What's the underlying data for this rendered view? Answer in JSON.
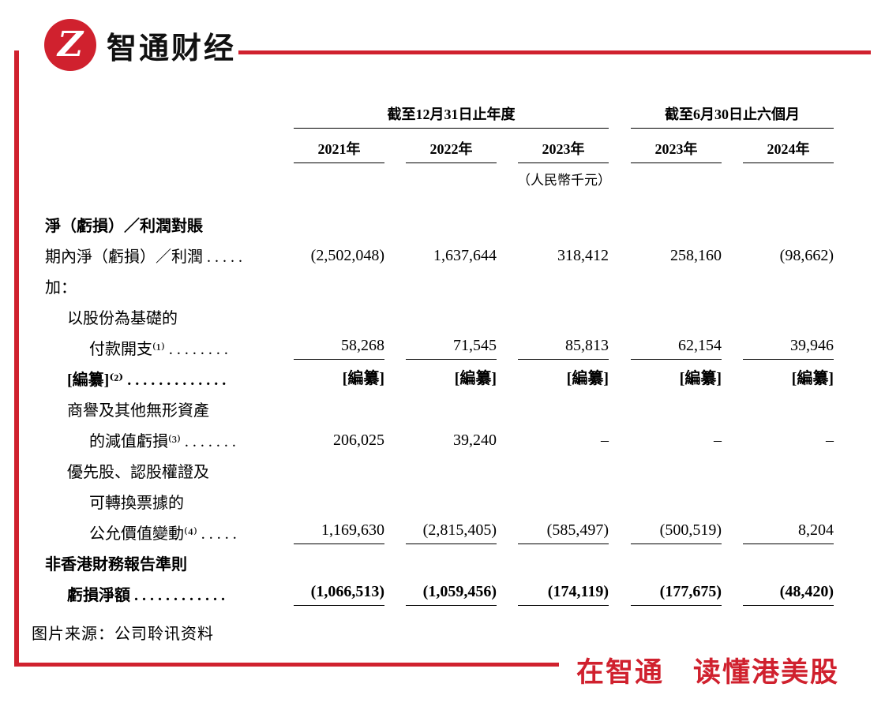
{
  "brand": {
    "name": "智通财经",
    "logo_letter": "Z",
    "slogan": "在智通　读懂港美股",
    "accent_color": "#d0212e"
  },
  "table": {
    "col_groups": [
      {
        "label": "截至12月31日止年度"
      },
      {
        "label": "截至6月30日止六個月"
      }
    ],
    "col_headers": [
      "2021年",
      "2022年",
      "2023年",
      "2023年",
      "2024年"
    ],
    "unit_note": "（人民幣千元）",
    "rows": [
      {
        "label": "淨（虧損）／利潤對賬"
      },
      {
        "label": "期內淨（虧損）／利潤 . . . . .",
        "values": [
          "(2,502,048)",
          "1,637,644",
          "318,412",
          "258,160",
          "(98,662)"
        ]
      },
      {
        "label": "加："
      },
      {
        "label": "以股份為基礎的"
      },
      {
        "label": "付款開支⁽¹⁾ . . . . . . . .",
        "values": [
          "58,268",
          "71,545",
          "85,813",
          "62,154",
          "39,946"
        ]
      },
      {
        "label": "[編纂]⁽²⁾ . . . . . . . . . . . . .",
        "values": [
          "[編纂]",
          "[編纂]",
          "[編纂]",
          "[編纂]",
          "[編纂]"
        ]
      },
      {
        "label": "商譽及其他無形資產"
      },
      {
        "label": "的減值虧損⁽³⁾ . . . . . . .",
        "values": [
          "206,025",
          "39,240",
          "–",
          "–",
          "–"
        ]
      },
      {
        "label": "優先股、認股權證及"
      },
      {
        "label": "可轉換票據的"
      },
      {
        "label": "公允價值變動⁽⁴⁾ . . . . .",
        "values": [
          "1,169,630",
          "(2,815,405)",
          "(585,497)",
          "(500,519)",
          "8,204"
        ]
      },
      {
        "label": "非香港財務報告準則"
      },
      {
        "label": "虧損淨額 . . . . . . . . . . . .",
        "values": [
          "(1,066,513)",
          "(1,059,456)",
          "(174,119)",
          "(177,675)",
          "(48,420)"
        ]
      }
    ]
  },
  "source_note": "图片来源：公司聆讯资料"
}
